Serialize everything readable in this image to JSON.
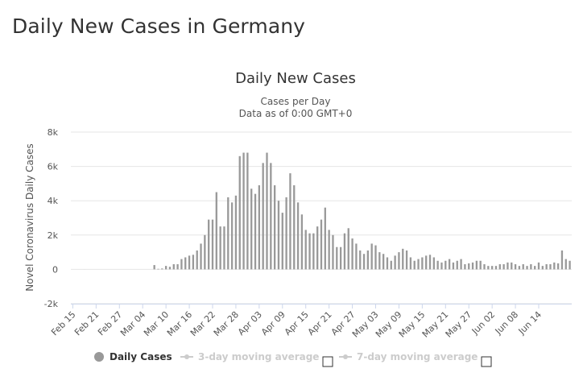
{
  "page": {
    "title": "Daily New Cases in Germany"
  },
  "legend_items": [
    {
      "label": "Daily Cases",
      "color": "#999999",
      "active": true,
      "checkbox": false
    },
    {
      "label": "3-day moving average",
      "color": "#cccccc",
      "active": false,
      "checkbox": true
    },
    {
      "label": "7-day moving average",
      "color": "#cccccc",
      "active": false,
      "checkbox": true
    }
  ],
  "chart_data": {
    "type": "bar",
    "title": "Daily New Cases",
    "subtitle_lines": [
      "Cases per Day",
      "Data as of 0:00 GMT+0"
    ],
    "ylabel": "Novel Coronavirus Daily Cases",
    "xlabel": "",
    "ylim": [
      -2000,
      8000
    ],
    "y_ticks": [
      -2000,
      0,
      2000,
      4000,
      6000,
      8000
    ],
    "y_tick_labels": [
      "-2k",
      "0",
      "2k",
      "4k",
      "6k",
      "8k"
    ],
    "x_tick_labels": [
      "Feb 15",
      "Feb 21",
      "Feb 27",
      "Mar 04",
      "Mar 10",
      "Mar 16",
      "Mar 22",
      "Mar 28",
      "Apr 03",
      "Apr 09",
      "Apr 15",
      "Apr 21",
      "Apr 27",
      "May 03",
      "May 09",
      "May 15",
      "May 21",
      "May 27",
      "Jun 02",
      "Jun 08",
      "Jun 14"
    ],
    "start_date": "Feb 15",
    "grid": true,
    "bar_color": "#999999",
    "series": [
      {
        "name": "Daily Cases",
        "values": [
          0,
          0,
          0,
          2,
          0,
          0,
          0,
          0,
          0,
          0,
          0,
          0,
          0,
          0,
          0,
          0,
          0,
          0,
          0,
          0,
          0,
          250,
          30,
          50,
          200,
          150,
          300,
          300,
          600,
          700,
          800,
          850,
          1100,
          1500,
          2000,
          2900,
          2900,
          4500,
          2500,
          2500,
          4200,
          3900,
          4300,
          6600,
          6800,
          6800,
          4700,
          4400,
          4900,
          6200,
          6800,
          6200,
          4900,
          4000,
          3300,
          4200,
          5600,
          4900,
          3900,
          3200,
          2300,
          2100,
          2100,
          2500,
          2900,
          3600,
          2300,
          2000,
          1300,
          1300,
          2100,
          2400,
          1800,
          1500,
          1100,
          900,
          1100,
          1500,
          1400,
          1000,
          900,
          700,
          500,
          800,
          1000,
          1200,
          1100,
          700,
          500,
          600,
          700,
          800,
          850,
          700,
          500,
          400,
          500,
          600,
          400,
          500,
          600,
          300,
          350,
          400,
          500,
          500,
          300,
          200,
          200,
          200,
          300,
          300,
          400,
          400,
          300,
          200,
          300,
          200,
          300,
          200,
          400,
          200,
          300,
          300,
          400,
          350,
          1100,
          600,
          500
        ]
      }
    ]
  }
}
